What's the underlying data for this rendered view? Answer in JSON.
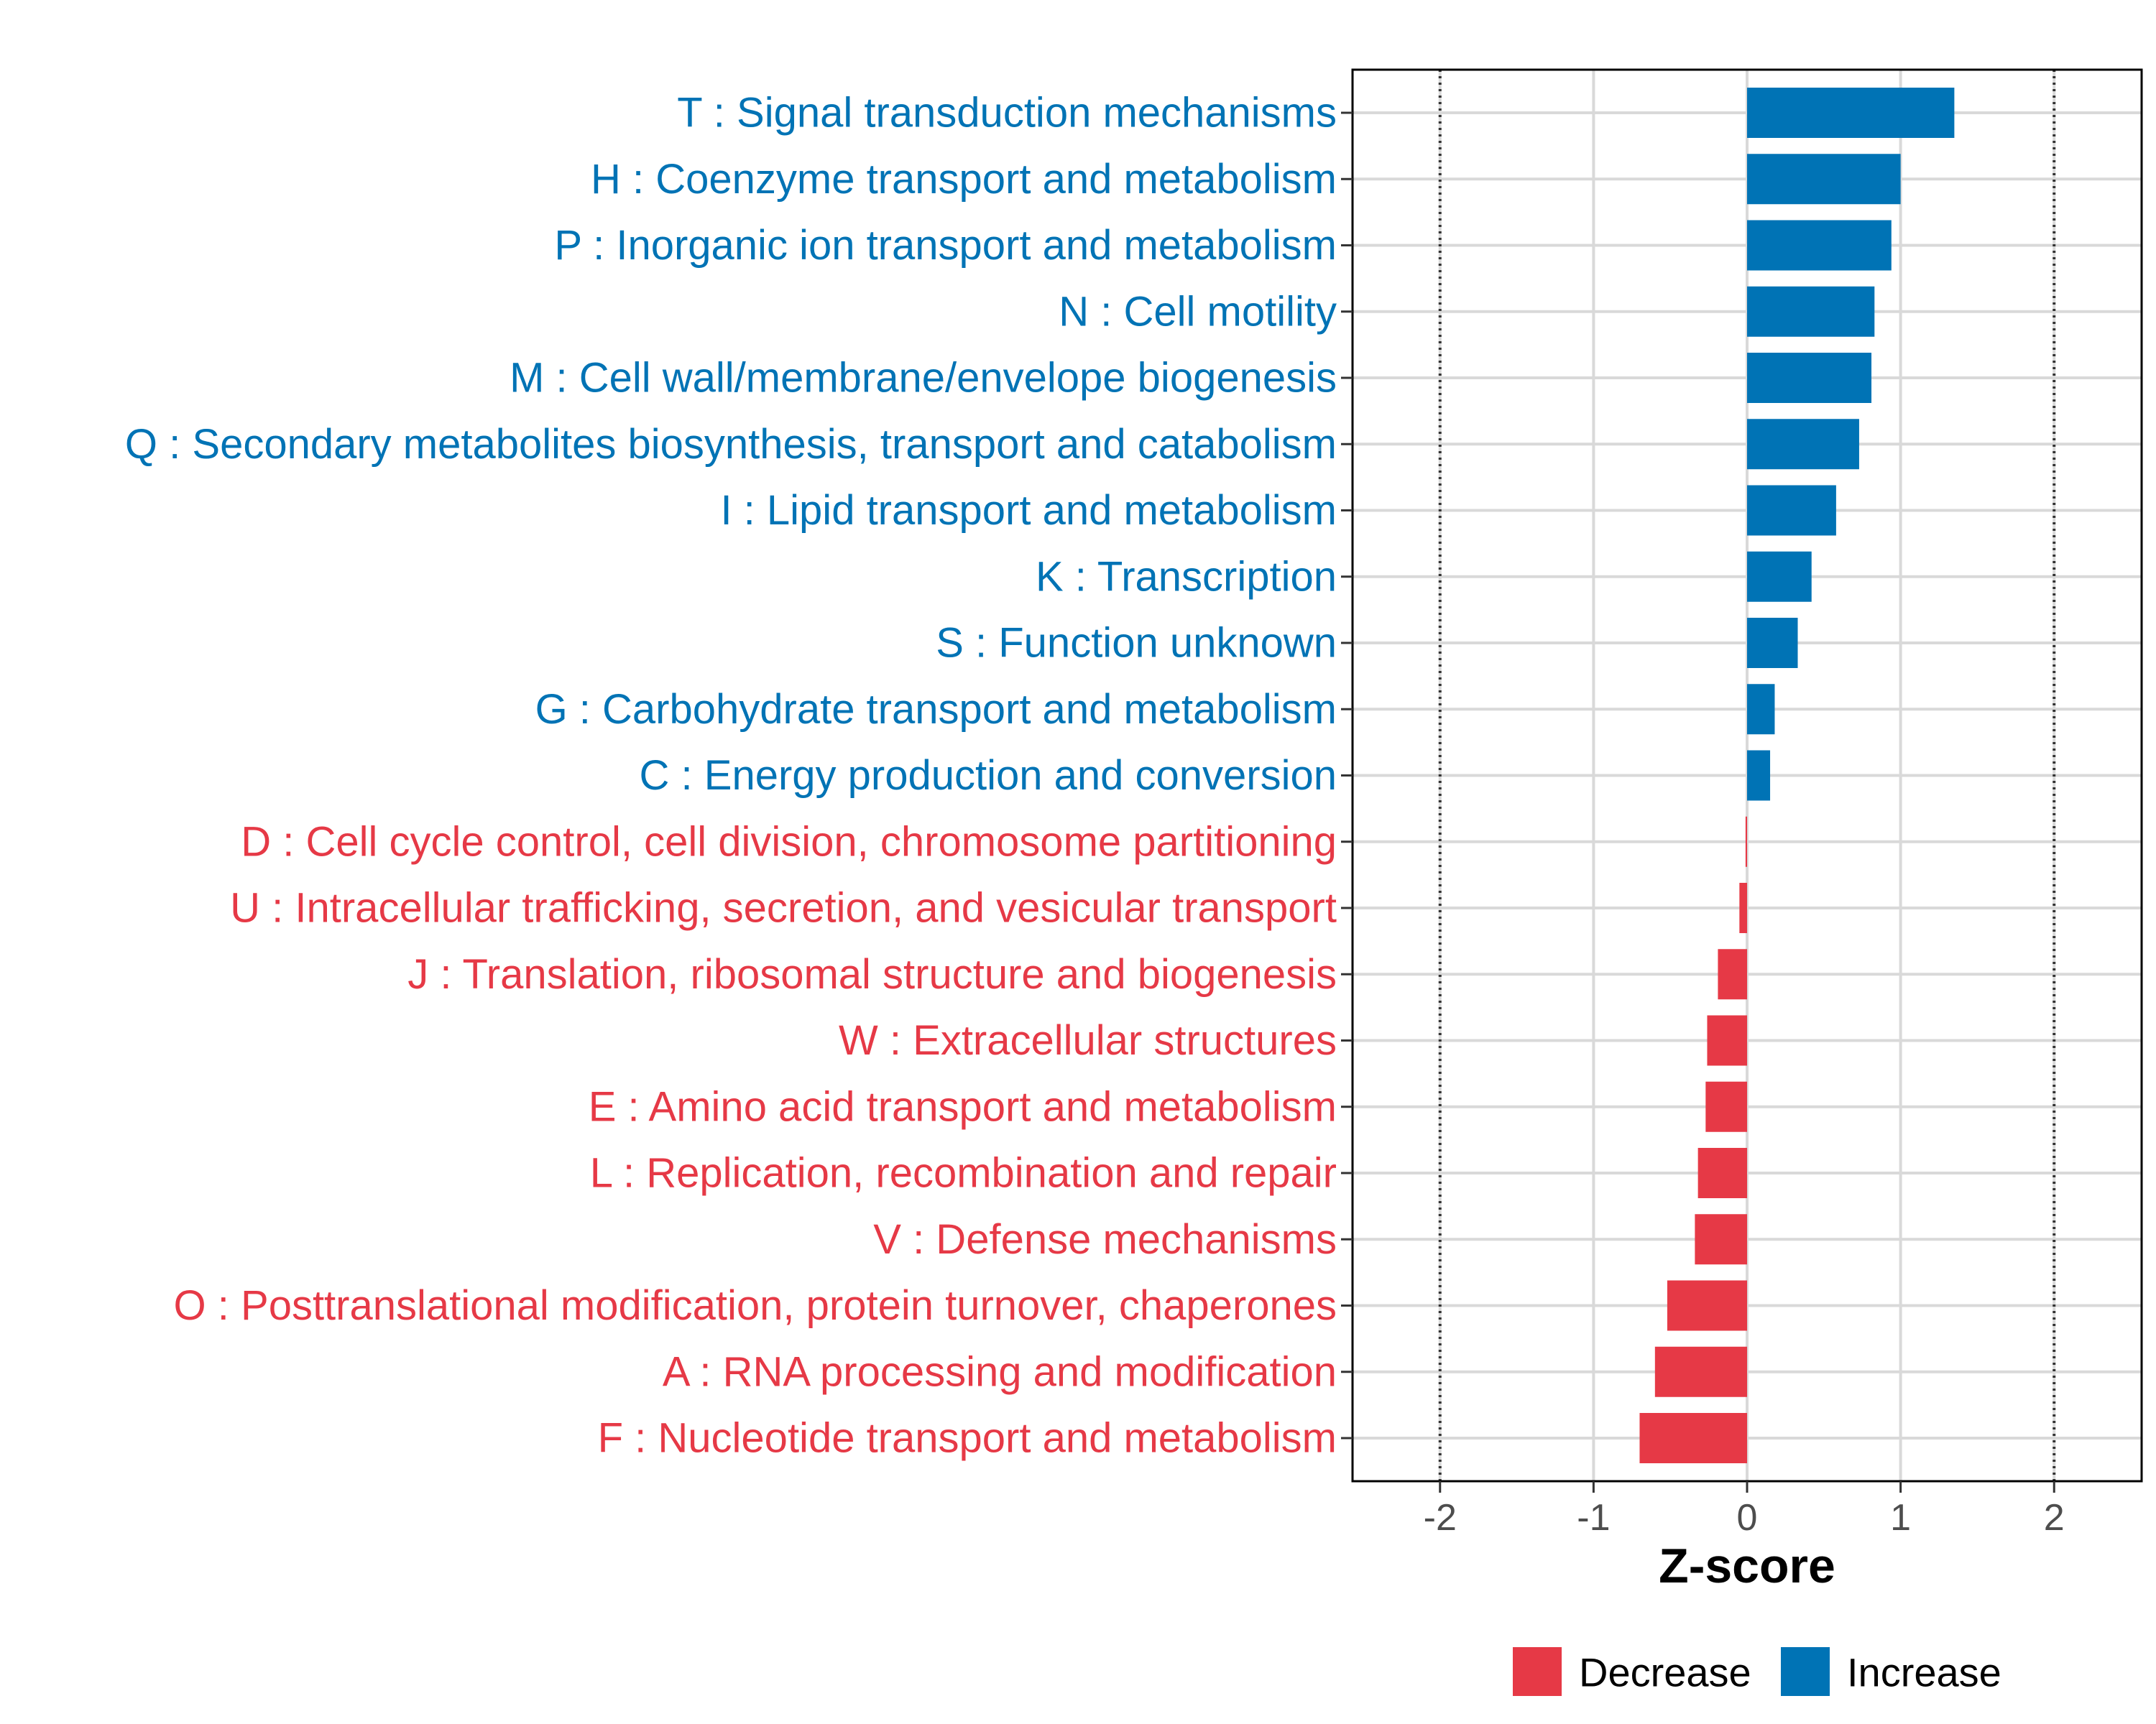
{
  "chart_data": {
    "type": "bar",
    "orientation": "horizontal",
    "title": "",
    "xlabel": "Z-score",
    "ylabel": "",
    "xlim": [
      -2.57,
      2.57
    ],
    "xticks": [
      -2,
      -1,
      0,
      1,
      2
    ],
    "xtick_labels": [
      "-2",
      "-1",
      "0",
      "1",
      "2"
    ],
    "reference_lines": [
      -2,
      2
    ],
    "grid": true,
    "colors": {
      "Increase": "#0073b5",
      "Decrease": "#e63946",
      "gridline": "#d9d9d9",
      "axis": "#000000",
      "tick_text": "#4d4d4d"
    },
    "categories": [
      "T : Signal transduction mechanisms",
      "H : Coenzyme transport and metabolism",
      "P : Inorganic ion transport and metabolism",
      "N : Cell motility",
      "M : Cell wall/membrane/envelope biogenesis",
      "Q : Secondary metabolites biosynthesis, transport and catabolism",
      "I : Lipid transport and metabolism",
      "K : Transcription",
      "S : Function unknown",
      "G : Carbohydrate transport and metabolism",
      "C : Energy production and conversion",
      "D : Cell cycle control, cell division, chromosome partitioning",
      "U : Intracellular trafficking, secretion, and vesicular transport",
      "J : Translation, ribosomal structure and biogenesis",
      "W : Extracellular structures",
      "E : Amino acid transport and metabolism",
      "L : Replication, recombination and repair",
      "V : Defense mechanisms",
      "O : Posttranslational modification, protein turnover, chaperones",
      "A : RNA processing and modification",
      "F : Nucleotide transport and metabolism"
    ],
    "values": [
      1.35,
      1.0,
      0.94,
      0.83,
      0.81,
      0.73,
      0.58,
      0.42,
      0.33,
      0.18,
      0.15,
      -0.01,
      -0.05,
      -0.19,
      -0.26,
      -0.27,
      -0.32,
      -0.34,
      -0.52,
      -0.6,
      -0.7
    ],
    "groups": [
      "Increase",
      "Increase",
      "Increase",
      "Increase",
      "Increase",
      "Increase",
      "Increase",
      "Increase",
      "Increase",
      "Increase",
      "Increase",
      "Decrease",
      "Decrease",
      "Decrease",
      "Decrease",
      "Decrease",
      "Decrease",
      "Decrease",
      "Decrease",
      "Decrease",
      "Decrease"
    ],
    "legend": {
      "position": "bottom",
      "entries": [
        "Decrease",
        "Increase"
      ]
    }
  }
}
